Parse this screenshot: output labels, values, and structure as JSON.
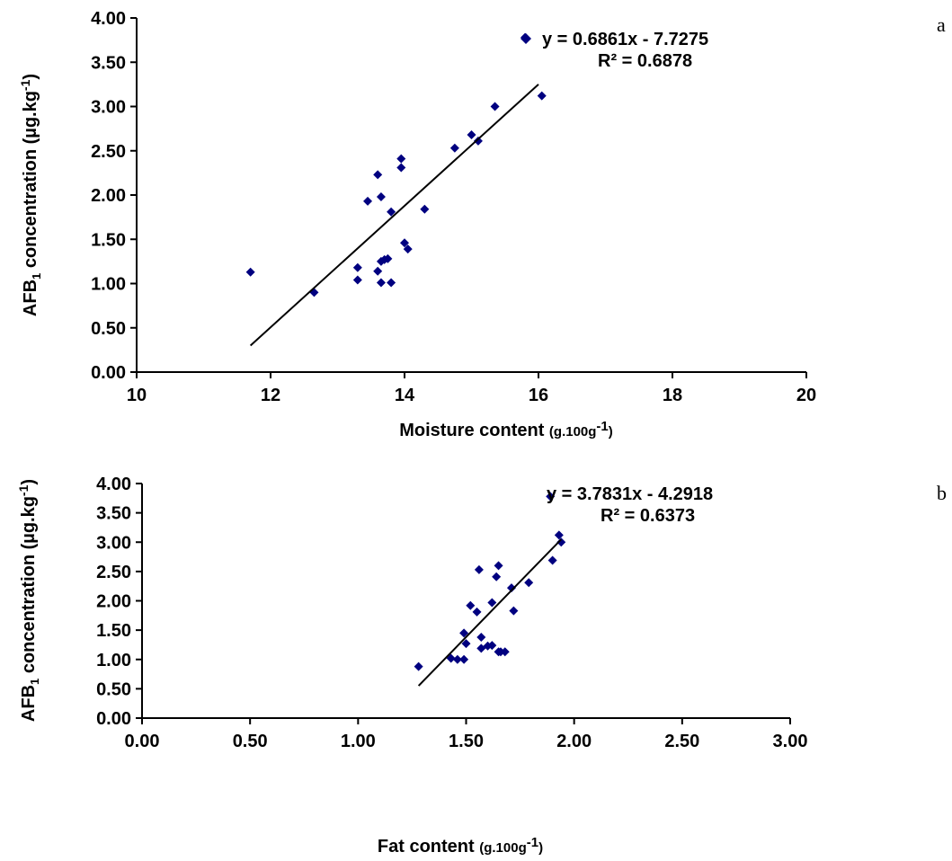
{
  "figure": {
    "panels": [
      {
        "panel_label": "a",
        "y_axis_label": {
          "prefix": "AFB",
          "subscript": "1",
          "middle": " concentration (",
          "unit": "µg.kg",
          "sup": "-1",
          "suffix": ")"
        },
        "x_axis_label": {
          "main": "Moisture content ",
          "unit": "(g.100g",
          "sup": "-1",
          "suffix": ")"
        },
        "equation": "y = 0.6861x - 7.7275",
        "r_squared": "R² = 0.6878",
        "legend_marker_color": "#000080",
        "x_tick_labels": [
          "10",
          "12",
          "14",
          "16",
          "18",
          "20"
        ],
        "y_tick_labels": [
          "0.00",
          "0.50",
          "1.00",
          "1.50",
          "2.00",
          "2.50",
          "3.00",
          "3.50",
          "4.00"
        ]
      },
      {
        "panel_label": "b",
        "y_axis_label": {
          "prefix": "AFB",
          "subscript": "1",
          "middle": " concentration (",
          "unit": "µg.kg",
          "sup": "-1",
          "suffix": ")"
        },
        "x_axis_label": {
          "main": "Fat content ",
          "unit": "(g.100g",
          "sup": "-1",
          "suffix": ")"
        },
        "equation": "y = 3.7831x - 4.2918",
        "r_squared": "R² = 0.6373",
        "legend_marker_color": "#000080",
        "x_tick_labels": [
          "0.00",
          "0.50",
          "1.00",
          "1.50",
          "2.00",
          "2.50",
          "3.00"
        ],
        "y_tick_labels": [
          "0.00",
          "0.50",
          "1.00",
          "1.50",
          "2.00",
          "2.50",
          "3.00",
          "3.50",
          "4.00"
        ]
      }
    ]
  },
  "chart_data": [
    {
      "type": "scatter",
      "title": "",
      "xlabel": "Moisture content (g.100g-1)",
      "ylabel": "AFB1 concentration (µg.kg-1)",
      "xlim": [
        10,
        20
      ],
      "ylim": [
        0,
        4
      ],
      "grid": false,
      "legend": "top-right",
      "marker_color": "#000080",
      "series": [
        {
          "x": [
            11.7,
            12.65,
            13.3,
            13.3,
            13.45,
            13.6,
            13.6,
            13.65,
            13.65,
            13.65,
            13.7,
            13.75,
            13.8,
            13.8,
            13.95,
            13.95,
            14.0,
            14.05,
            14.3,
            14.75,
            15.0,
            15.1,
            15.35,
            15.8,
            16.05
          ],
          "y": [
            1.13,
            0.9,
            1.18,
            1.04,
            1.93,
            2.23,
            1.14,
            1.25,
            1.98,
            1.01,
            1.27,
            1.28,
            1.01,
            1.81,
            2.41,
            2.31,
            1.46,
            1.39,
            1.84,
            2.53,
            2.68,
            2.61,
            3.0,
            3.78,
            3.12
          ]
        }
      ],
      "trendline": {
        "slope": 0.6861,
        "intercept": -7.7275,
        "x_range": [
          11.7,
          16.0
        ]
      }
    },
    {
      "type": "scatter",
      "title": "",
      "xlabel": "Fat content (g.100g-1)",
      "ylabel": "AFB1 concentration (µg.kg-1)",
      "xlim": [
        0,
        3
      ],
      "ylim": [
        0,
        4
      ],
      "grid": false,
      "legend": "top-right",
      "marker_color": "#000080",
      "series": [
        {
          "x": [
            1.28,
            1.43,
            1.46,
            1.49,
            1.49,
            1.5,
            1.52,
            1.55,
            1.56,
            1.57,
            1.57,
            1.6,
            1.62,
            1.62,
            1.64,
            1.65,
            1.65,
            1.66,
            1.68,
            1.71,
            1.72,
            1.79,
            1.89,
            1.9,
            1.93,
            1.94
          ],
          "y": [
            0.88,
            1.02,
            1.0,
            1.0,
            1.45,
            1.27,
            1.92,
            1.81,
            2.53,
            1.38,
            1.19,
            1.23,
            1.97,
            1.24,
            2.41,
            2.6,
            1.13,
            1.13,
            1.13,
            2.22,
            1.83,
            2.31,
            3.78,
            2.69,
            3.12,
            3.0
          ]
        }
      ],
      "trendline": {
        "slope": 3.7831,
        "intercept": -4.2918,
        "x_range": [
          1.28,
          1.94
        ]
      }
    }
  ]
}
